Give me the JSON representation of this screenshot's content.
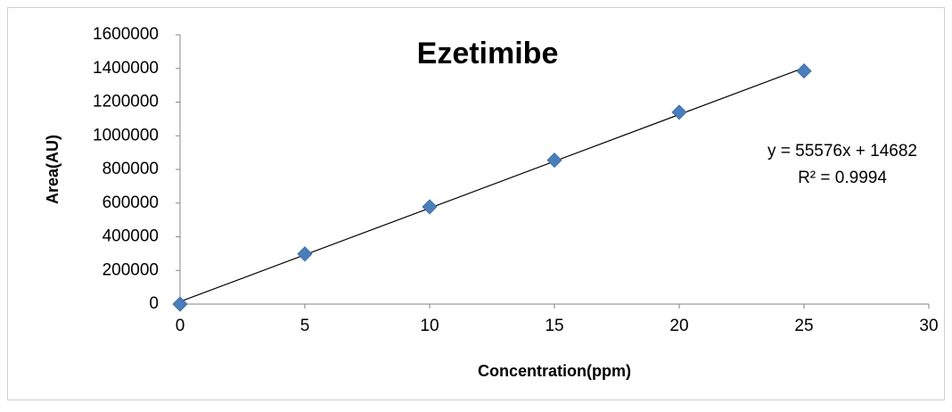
{
  "chart_data": {
    "type": "scatter",
    "title": "Ezetimibe",
    "x_label": "Concentration(ppm)",
    "y_label": "Area(AU)",
    "series": [
      {
        "name": "Area",
        "color": "#4a7ebb",
        "x": [
          0,
          5,
          10,
          15,
          20,
          25
        ],
        "values": [
          0,
          298000,
          578000,
          855000,
          1140000,
          1385000
        ]
      }
    ],
    "trendline": {
      "slope": 55576,
      "intercept": 14682,
      "label": "y = 55576x + 14682",
      "r2_label": "R² = 0.9994",
      "color": "#000000"
    },
    "xlim": [
      0,
      30
    ],
    "xticks": [
      0,
      5,
      10,
      15,
      20,
      25,
      30
    ],
    "ylim": [
      0,
      1600000
    ],
    "yticks": [
      0,
      200000,
      400000,
      600000,
      800000,
      1000000,
      1200000,
      1400000,
      1600000
    ],
    "grid": false
  }
}
